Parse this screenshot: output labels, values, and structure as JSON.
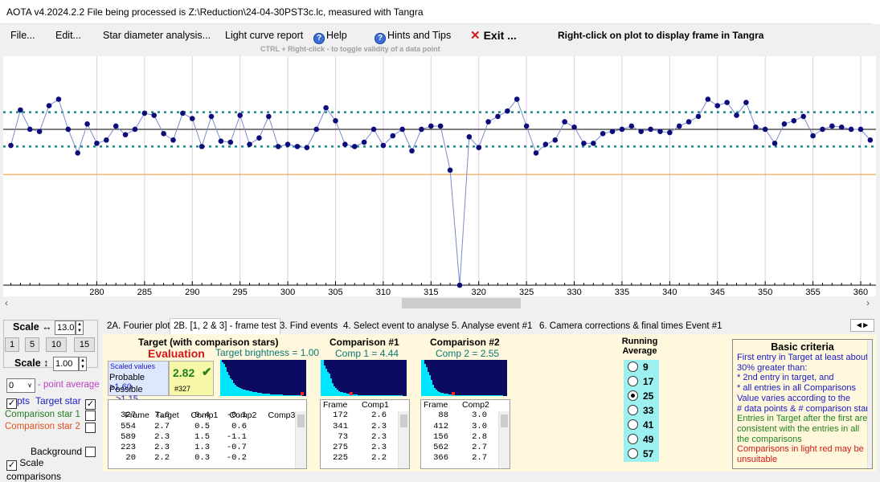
{
  "window": {
    "title": "AOTA v4.2024.2.2    File being processed is Z:\\Reduction\\24-04-30PST3c.lc, measured with Tangra"
  },
  "menu": {
    "file": "File...",
    "edit": "Edit...",
    "star_diameter": "Star diameter analysis...",
    "light_curve": "Light curve report",
    "help": "Help",
    "hints": "Hints and Tips",
    "exit": "Exit ...",
    "right_click_hint": "Right-click on plot to display frame in Tangra",
    "ctrl_hint": "CTRL + Right-click   -  to toggle validity of a data point"
  },
  "colors": {
    "points": "#0c0c7c",
    "dotted": "#1a8a8a",
    "orange": "#f0a040",
    "heat_bg": "#0a0a60",
    "heat_fg": "#00e5ff",
    "panel_bg": "#fff8dc"
  },
  "chart_data": {
    "type": "line",
    "x": [
      271,
      272,
      273,
      274,
      275,
      276,
      277,
      278,
      279,
      280,
      281,
      282,
      283,
      284,
      285,
      286,
      287,
      288,
      289,
      290,
      291,
      292,
      293,
      294,
      295,
      296,
      297,
      298,
      299,
      300,
      301,
      302,
      303,
      304,
      305,
      306,
      307,
      308,
      309,
      310,
      311,
      312,
      313,
      314,
      315,
      316,
      317,
      318,
      319,
      320,
      321,
      322,
      323,
      324,
      325,
      326,
      327,
      328,
      329,
      330,
      331,
      332,
      333,
      334,
      335,
      336,
      337,
      338,
      339,
      340,
      341,
      342,
      343,
      344,
      345,
      346,
      347,
      348,
      349,
      350,
      351,
      352,
      353,
      354,
      355,
      356,
      357,
      358,
      359,
      360,
      361
    ],
    "y": [
      0.85,
      1.18,
      1.0,
      0.98,
      1.22,
      1.28,
      1.0,
      0.78,
      1.05,
      0.87,
      0.9,
      1.03,
      0.95,
      1.0,
      1.15,
      1.13,
      0.96,
      0.9,
      1.15,
      1.1,
      0.84,
      1.12,
      0.89,
      0.88,
      1.13,
      0.86,
      0.92,
      1.12,
      0.84,
      0.86,
      0.84,
      0.83,
      1.0,
      1.2,
      1.08,
      0.86,
      0.84,
      0.88,
      1.0,
      0.85,
      0.94,
      1.0,
      0.8,
      1.0,
      1.03,
      1.03,
      0.62,
      -0.45,
      0.93,
      0.83,
      1.07,
      1.12,
      1.17,
      1.28,
      1.03,
      0.78,
      0.86,
      0.9,
      1.07,
      1.02,
      0.87,
      0.87,
      0.96,
      0.98,
      1.0,
      1.03,
      0.98,
      1.0,
      0.98,
      0.97,
      1.03,
      1.07,
      1.12,
      1.28,
      1.22,
      1.25,
      1.13,
      1.25,
      1.02,
      1.0,
      0.87,
      1.05,
      1.08,
      1.12,
      0.94,
      1.0,
      1.03,
      1.02,
      1.0,
      1.0,
      0.9
    ],
    "xticks": [
      280,
      285,
      290,
      295,
      300,
      305,
      310,
      315,
      320,
      325,
      330,
      335,
      340,
      345,
      350,
      355,
      360
    ],
    "xlim": [
      270.2,
      361.6
    ],
    "ylim": [
      -0.45,
      1.65
    ],
    "mean": 1.0,
    "band": [
      1.16,
      0.84
    ],
    "threshold": 0.58
  },
  "left": {
    "scale_h": "Scale ↔",
    "scale_h_val": "13.0",
    "btn1": "1",
    "btn5": "5",
    "btn10": "10",
    "btn15": "15",
    "scale_v": "Scale ↕",
    "scale_v_val": "1.00",
    "avg_val": "0",
    "avg_label": "- point average",
    "pts": "pts",
    "target_star": "Target star",
    "comp1": "Comparison star 1",
    "comp2": "Comparison star 2",
    "background": "Background",
    "scale_comp": "Scale comparisons",
    "check": "✓"
  },
  "tabs": [
    "2A. Fourier plot",
    "2B. [1, 2 & 3] - frame test",
    "3. Find events",
    "4. Select event to analyse",
    "5. Analyse event #1",
    "6. Camera corrections & final times Event #1"
  ],
  "target": {
    "title": "Target (with comparison stars)",
    "eval": "Evaluation",
    "brightness": "Target  brightness = 1.00",
    "scaled": "Scaled values",
    "probable": "Probable",
    "prob_val": ">1.60",
    "possible": "Possible",
    "poss_val": ">1.15",
    "score": "2.82",
    "frame": "#327",
    "check": "✔",
    "headers": [
      "Frame",
      "Target",
      "Comp1",
      "Comp2",
      "Comp3"
    ],
    "rows": [
      [
        "327",
        "7.6",
        "0.4",
        "-0.1"
      ],
      [
        "554",
        "2.7",
        "0.5",
        "0.6"
      ],
      [
        "589",
        "2.3",
        "1.5",
        "-1.1"
      ],
      [
        "223",
        "2.3",
        "1.3",
        "-0.7"
      ],
      [
        "20",
        "2.2",
        "0.3",
        "-0.2"
      ]
    ]
  },
  "comp1": {
    "title": "Comparison #1",
    "sub": "Comp 1 = 4.44",
    "headers": [
      "Frame",
      "Comp1"
    ],
    "rows": [
      [
        "172",
        "2.6"
      ],
      [
        "341",
        "2.3"
      ],
      [
        "73",
        "2.3"
      ],
      [
        "275",
        "2.3"
      ],
      [
        "225",
        "2.2"
      ]
    ]
  },
  "comp2": {
    "title": "Comparison #2",
    "sub": "Comp 2 = 2.55",
    "headers": [
      "Frame",
      "Comp2"
    ],
    "rows": [
      [
        "88",
        "3.0"
      ],
      [
        "412",
        "3.0"
      ],
      [
        "156",
        "2.8"
      ],
      [
        "562",
        "2.7"
      ],
      [
        "366",
        "2.7"
      ]
    ]
  },
  "running": {
    "title1": "Running",
    "title2": "Average",
    "options": [
      "9",
      "17",
      "25",
      "33",
      "41",
      "49",
      "57"
    ],
    "selected": "25"
  },
  "criteria": {
    "title": "Basic criteria",
    "lines": [
      "First entry in Target at least about",
      "30% greater than:",
      "*  2nd  entry in target, and",
      "*  all entries in all Comparisons",
      "Value varies according to the",
      "# data points & # comparison stars",
      "Entries in Target after the first are",
      "consistent with the entries in all",
      "the comparisons",
      "Comparisons in light red may be",
      "unsuitable"
    ]
  }
}
